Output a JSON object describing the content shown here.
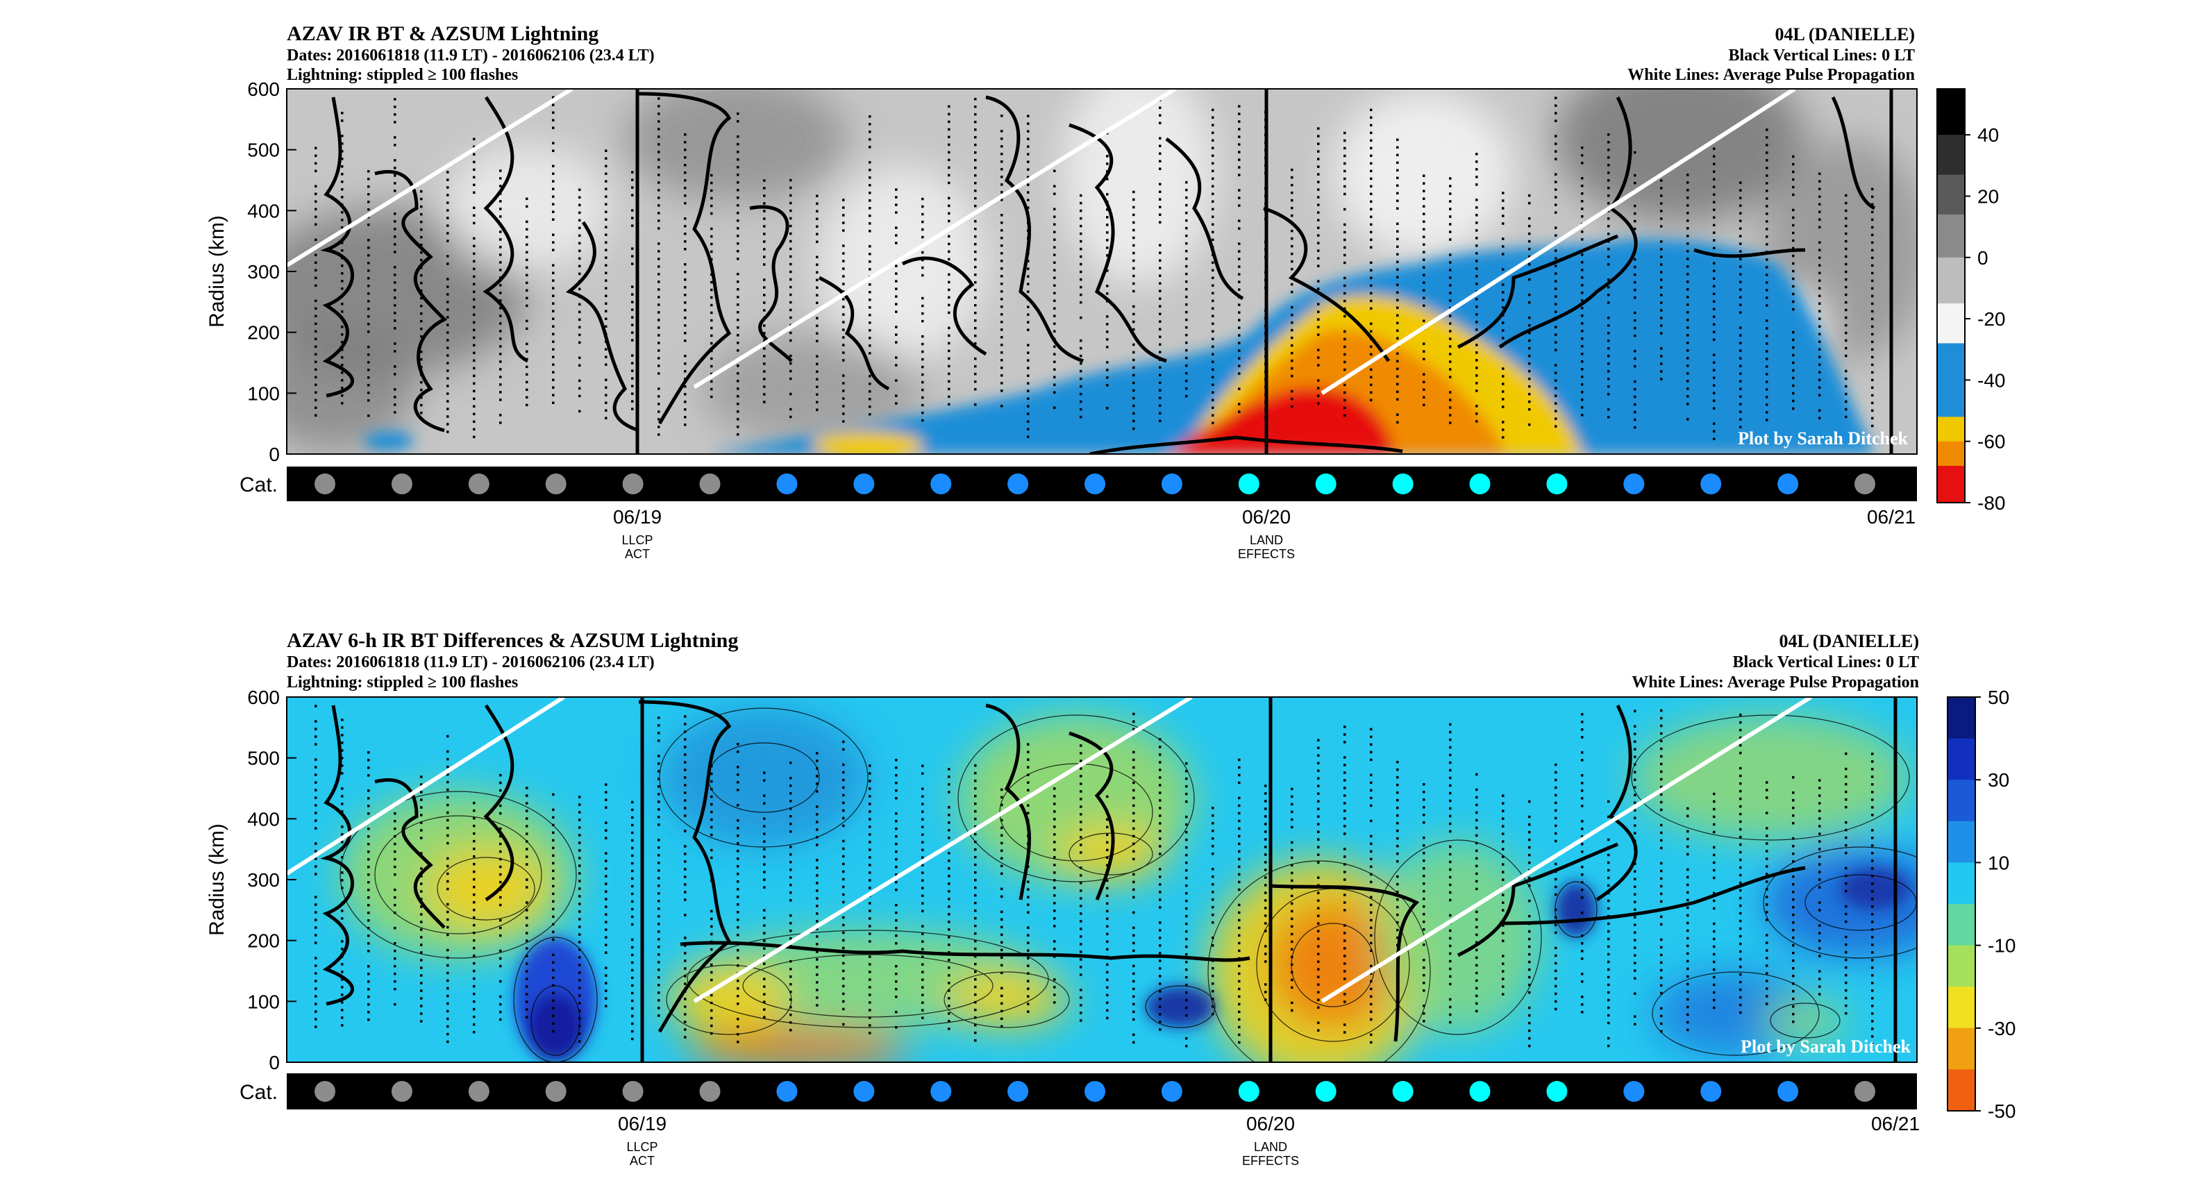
{
  "chart_data": [
    {
      "type": "heatmap",
      "title": "AZAV IR BT & AZSUM Lightning",
      "subtitle_dates": "Dates: 2016061818 (11.9 LT) - 2016062106 (23.4 LT)",
      "subtitle_lightning": "Lightning: stippled ≥ 100 flashes",
      "storm": "04L (DANIELLE)",
      "note_black_lines": "Black Vertical Lines: 0 LT",
      "note_white_lines": "White Lines: Average Pulse Propagation",
      "ylabel": "Radius (km)",
      "ylim": [
        0,
        600
      ],
      "yticks": [
        "0",
        "100",
        "200",
        "300",
        "400",
        "500",
        "600"
      ],
      "xticks": [
        {
          "label": "06/19",
          "event": [
            "LLCP",
            "ACT"
          ]
        },
        {
          "label": "06/20",
          "event": [
            "LAND",
            "EFFECTS"
          ]
        },
        {
          "label": "06/21",
          "event": []
        }
      ],
      "cat_label": "Cat.",
      "cat_colors": [
        "#8c8c8c",
        "#8c8c8c",
        "#8c8c8c",
        "#8c8c8c",
        "#8c8c8c",
        "#8c8c8c",
        "#1a8cff",
        "#1a8cff",
        "#1a8cff",
        "#1a8cff",
        "#1a8cff",
        "#1a8cff",
        "#00ffff",
        "#00ffff",
        "#00ffff",
        "#00ffff",
        "#00ffff",
        "#1a8cff",
        "#1a8cff",
        "#1a8cff",
        "#8c8c8c"
      ],
      "colorbar_ticks": [
        "40",
        "20",
        "0",
        "-20",
        "-40",
        "-60",
        "-80"
      ],
      "colorbar_range": [
        -80,
        55
      ],
      "credit": "Plot by Sarah Ditchek",
      "pulse_lines": [
        {
          "t": [
            0.0,
            0.175
          ],
          "r": [
            310,
            600
          ]
        },
        {
          "t": [
            0.25,
            0.545
          ],
          "r": [
            110,
            600
          ]
        },
        {
          "t": [
            0.635,
            0.925
          ],
          "r": [
            100,
            600
          ]
        }
      ]
    },
    {
      "type": "heatmap",
      "title": "AZAV 6-h IR BT Differences & AZSUM Lightning",
      "subtitle_dates": "Dates: 2016061818 (11.9 LT) - 2016062106 (23.4 LT)",
      "subtitle_lightning": "Lightning: stippled ≥ 100 flashes",
      "storm": "04L (DANIELLE)",
      "note_black_lines": "Black Vertical Lines: 0 LT",
      "note_white_lines": "White Lines: Average Pulse Propagation",
      "ylabel": "Radius (km)",
      "ylim": [
        0,
        600
      ],
      "yticks": [
        "0",
        "100",
        "200",
        "300",
        "400",
        "500",
        "600"
      ],
      "xticks": [
        {
          "label": "06/19",
          "event": [
            "LLCP",
            "ACT"
          ]
        },
        {
          "label": "06/20",
          "event": [
            "LAND",
            "EFFECTS"
          ]
        },
        {
          "label": "06/21",
          "event": []
        }
      ],
      "cat_label": "Cat.",
      "cat_colors": [
        "#8c8c8c",
        "#8c8c8c",
        "#8c8c8c",
        "#8c8c8c",
        "#8c8c8c",
        "#8c8c8c",
        "#1a8cff",
        "#1a8cff",
        "#1a8cff",
        "#1a8cff",
        "#1a8cff",
        "#1a8cff",
        "#00ffff",
        "#00ffff",
        "#00ffff",
        "#00ffff",
        "#00ffff",
        "#1a8cff",
        "#1a8cff",
        "#1a8cff",
        "#8c8c8c"
      ],
      "colorbar_ticks": [
        "50",
        "30",
        "10",
        "-10",
        "-30",
        "-50"
      ],
      "colorbar_range": [
        -50,
        50
      ],
      "credit": "Plot by Sarah Ditchek",
      "pulse_lines": [
        {
          "t": [
            0.0,
            0.17
          ],
          "r": [
            310,
            600
          ]
        },
        {
          "t": [
            0.25,
            0.555
          ],
          "r": [
            100,
            600
          ]
        },
        {
          "t": [
            0.635,
            0.935
          ],
          "r": [
            100,
            600
          ]
        }
      ]
    }
  ]
}
